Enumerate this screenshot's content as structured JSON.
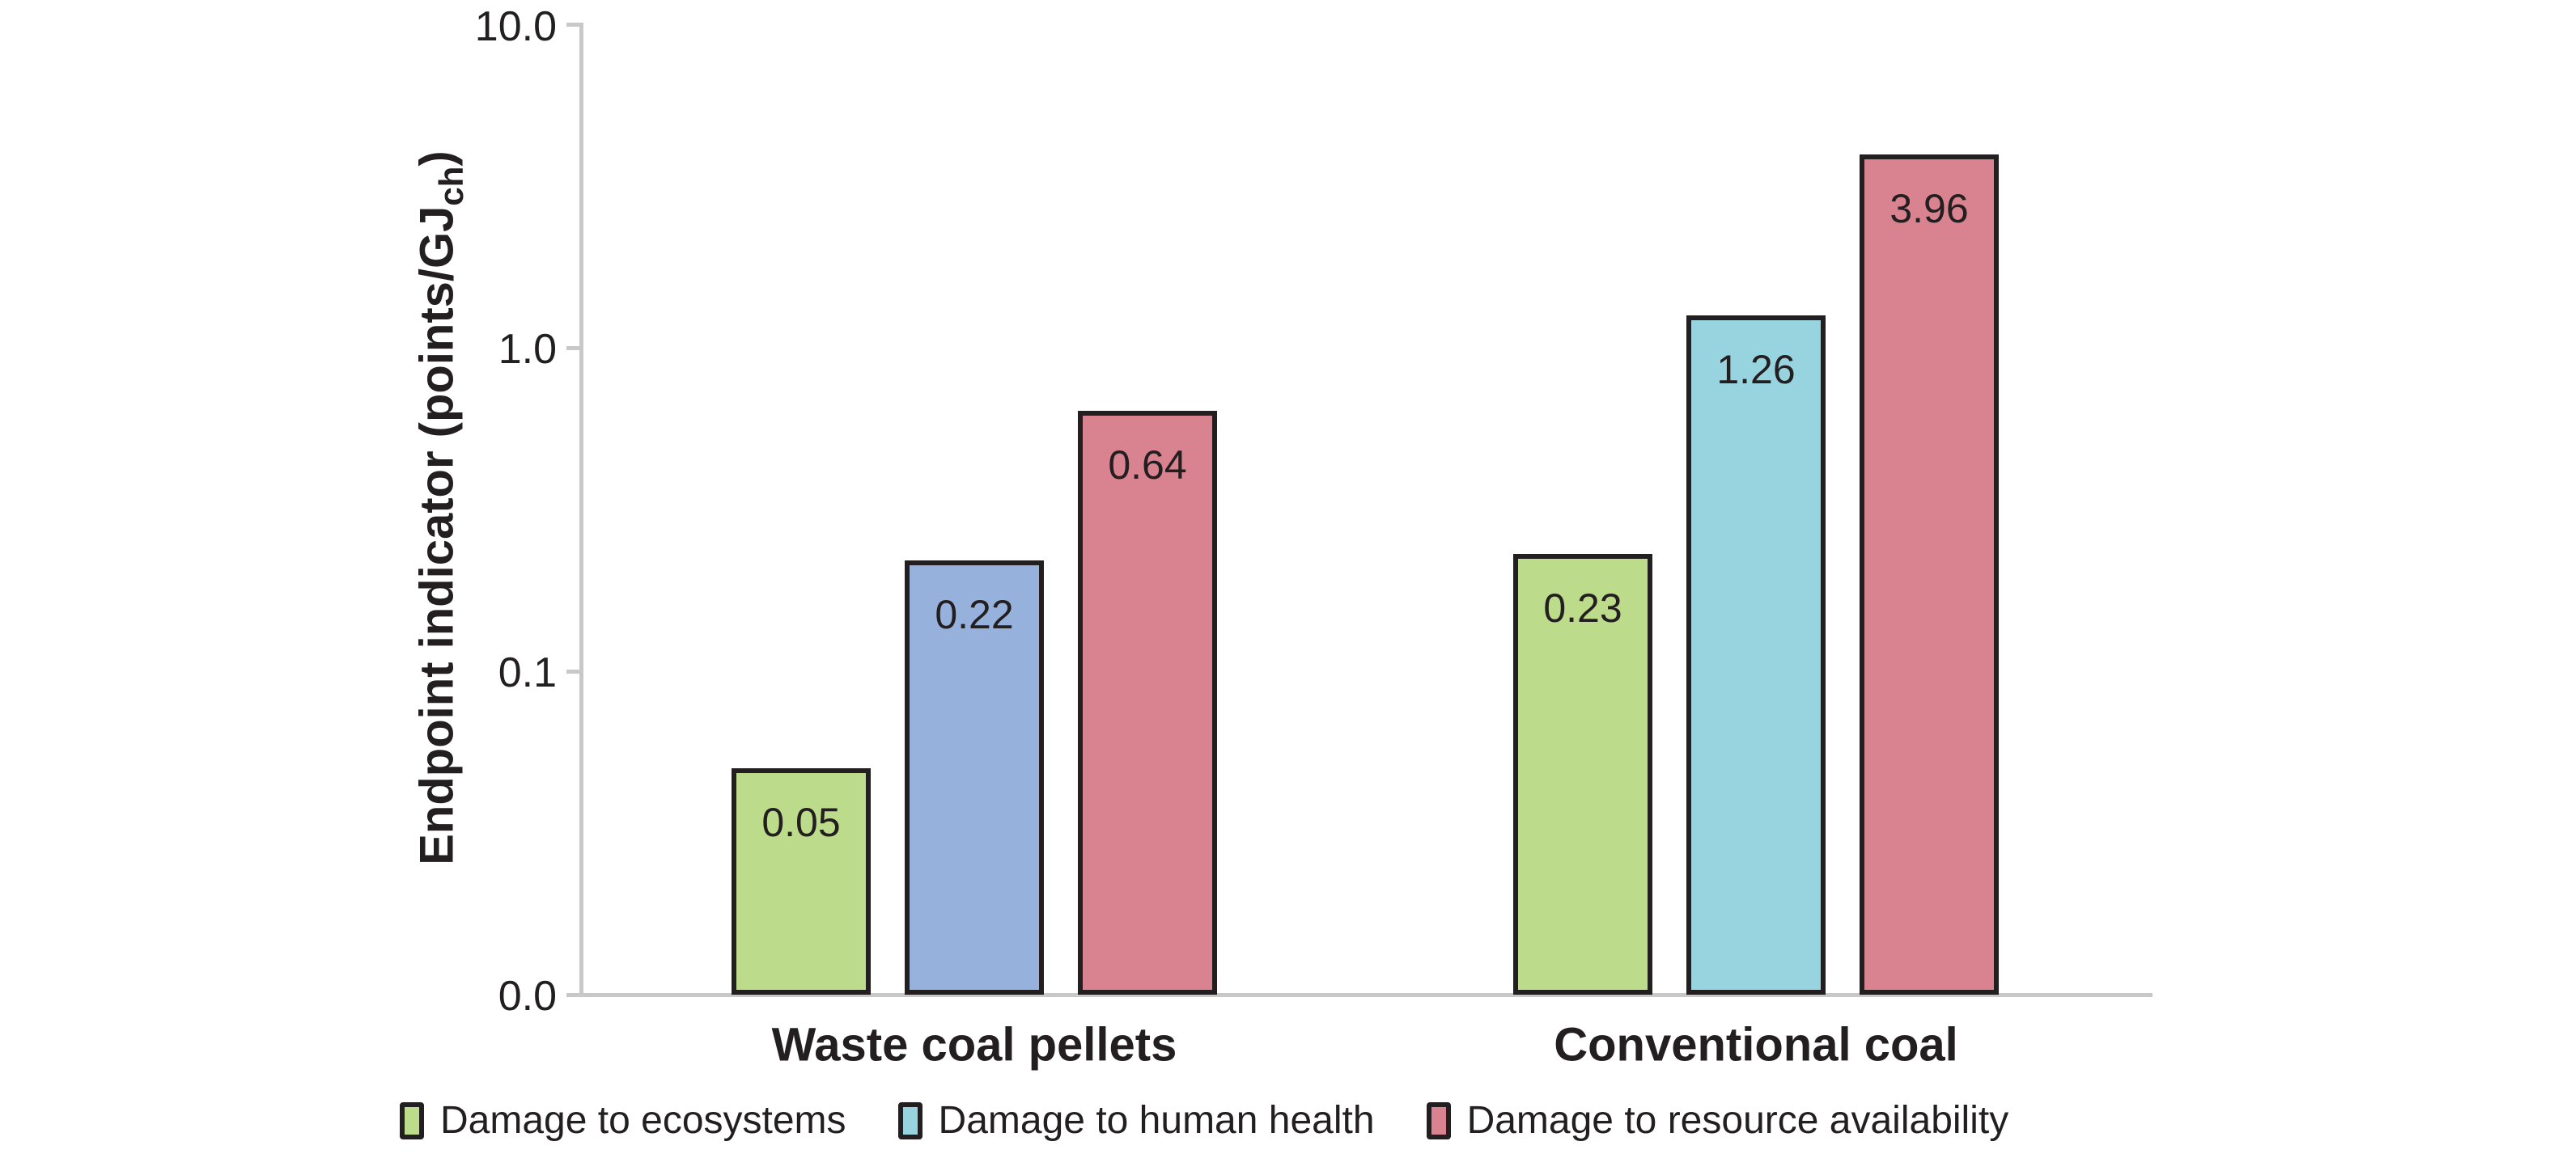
{
  "chart_data": {
    "type": "bar",
    "y_scale": "log",
    "ylabel_main": "Endpoint indicator (points/GJ",
    "ylabel_sub": "ch",
    "ylabel_close": ")",
    "ylabel_plain": "Endpoint indicator (points/GJch)",
    "xlabel": "",
    "title": "",
    "yticks": [
      "10.0",
      "1.0",
      "0.1",
      "0.0"
    ],
    "ylim": [
      0.01,
      10
    ],
    "grid": false,
    "legend_position": "bottom",
    "axis_color": "#c8c8c8",
    "bar_border_color": "#231f20",
    "categories": [
      "Waste coal pellets",
      "Conventional coal"
    ],
    "series": [
      {
        "name": "Damage to ecosystems",
        "color": "#bddc8b",
        "values": [
          0.05,
          0.23
        ]
      },
      {
        "name": "Damage to human health",
        "color": "#98d4e0",
        "bar_colors": [
          "#97b1dd",
          "#98d4e0"
        ],
        "values": [
          0.22,
          1.26
        ]
      },
      {
        "name": "Damage to resource availability",
        "color": "#d8838f",
        "values": [
          0.64,
          3.96
        ]
      }
    ],
    "value_labels": [
      [
        "0.05",
        "0.22",
        "0.64"
      ],
      [
        "0.23",
        "1.26",
        "3.96"
      ]
    ],
    "legend": [
      {
        "label": "Damage to ecosystems",
        "color": "#bddc8b"
      },
      {
        "label": "Damage to human health",
        "color": "#98d4e0"
      },
      {
        "label": "Damage to resource availability",
        "color": "#d8838f"
      }
    ]
  }
}
